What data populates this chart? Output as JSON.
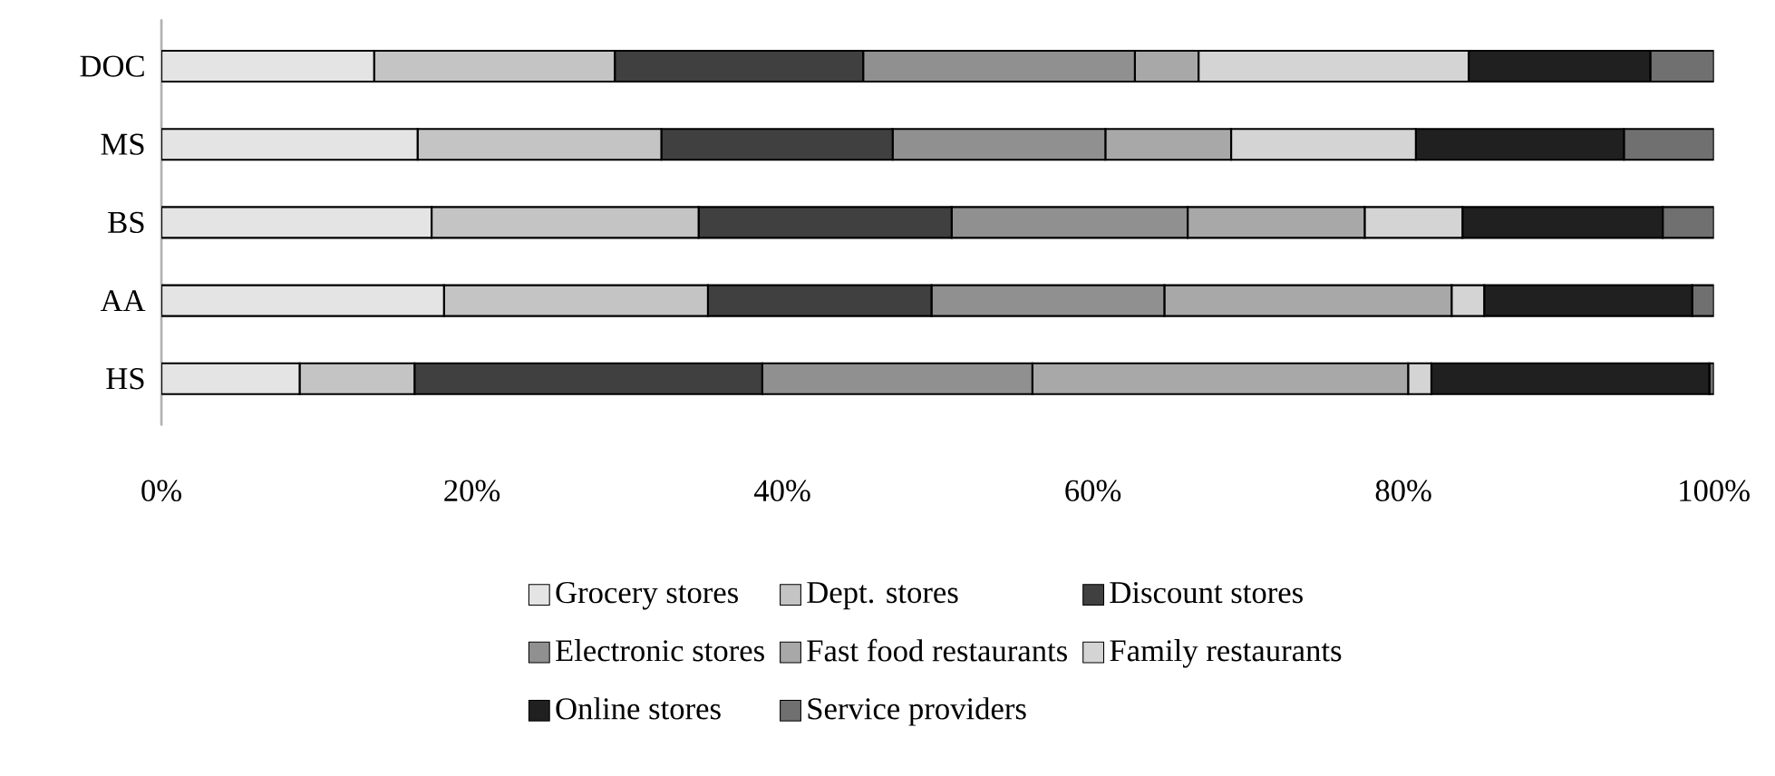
{
  "chart_data": {
    "type": "bar",
    "orientation": "horizontal",
    "stacked": true,
    "categories": [
      "DOC",
      "MS",
      "BS",
      "AA",
      "HS"
    ],
    "series": [
      {
        "name": "Grocery stores",
        "color": "#e4e4e4",
        "values": [
          13.7,
          16.5,
          17.4,
          18.2,
          8.9
        ]
      },
      {
        "name": "Dept. stores",
        "color": "#c4c4c4",
        "values": [
          15.5,
          15.7,
          17.2,
          17.0,
          7.4
        ]
      },
      {
        "name": "Discount stores",
        "color": "#404040",
        "values": [
          16.0,
          14.9,
          16.3,
          14.4,
          22.4
        ]
      },
      {
        "name": "Electronic stores",
        "color": "#909090",
        "values": [
          17.5,
          13.7,
          15.2,
          15.0,
          17.4
        ]
      },
      {
        "name": "Fast food restaurants",
        "color": "#a8a8a8",
        "values": [
          4.1,
          8.1,
          11.4,
          18.5,
          24.2
        ]
      },
      {
        "name": "Family restaurants",
        "color": "#d4d4d4",
        "values": [
          17.4,
          11.9,
          6.3,
          2.1,
          1.5
        ]
      },
      {
        "name": "Online stores",
        "color": "#202020",
        "values": [
          11.7,
          13.4,
          12.9,
          13.4,
          17.9
        ]
      },
      {
        "name": "Service providers",
        "color": "#707070",
        "values": [
          4.1,
          5.8,
          3.3,
          1.4,
          0.3
        ]
      }
    ],
    "xlim": [
      0,
      100
    ],
    "xticks": [
      {
        "value": 0,
        "label": "0%"
      },
      {
        "value": 20,
        "label": "20%"
      },
      {
        "value": 40,
        "label": "40%"
      },
      {
        "value": 60,
        "label": "60%"
      },
      {
        "value": 80,
        "label": "80%"
      },
      {
        "value": 100,
        "label": "100%"
      }
    ],
    "grid": false,
    "legend": "bottom"
  }
}
